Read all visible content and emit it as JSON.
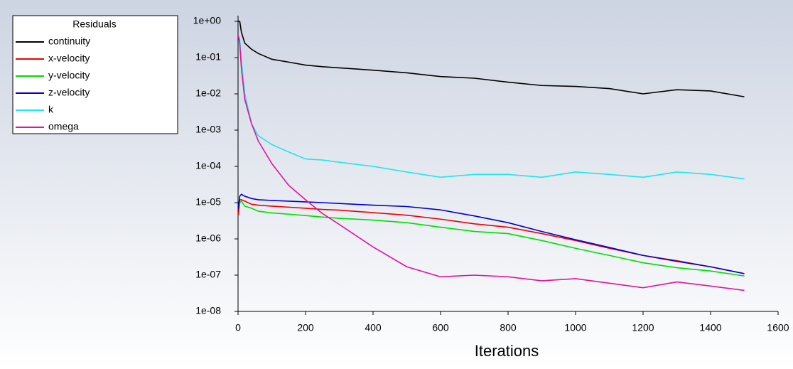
{
  "chart_data": {
    "type": "line",
    "legend_title": "Residuals",
    "xlabel": "Iterations",
    "log_y": true,
    "legend": "upper left",
    "xlim": [
      0,
      1600
    ],
    "xticks": [
      0,
      200,
      400,
      600,
      800,
      1000,
      1200,
      1400,
      1600
    ],
    "ylim": [
      1e-08,
      1
    ],
    "yticks": [
      {
        "value": 1,
        "label": "1e+00"
      },
      {
        "value": 0.1,
        "label": "1e-01"
      },
      {
        "value": 0.01,
        "label": "1e-02"
      },
      {
        "value": 0.001,
        "label": "1e-03"
      },
      {
        "value": 0.0001,
        "label": "1e-04"
      },
      {
        "value": 1e-05,
        "label": "1e-05"
      },
      {
        "value": 1e-06,
        "label": "1e-06"
      },
      {
        "value": 1e-07,
        "label": "1e-07"
      },
      {
        "value": 1e-08,
        "label": "1e-08"
      }
    ],
    "x": [
      1,
      5,
      10,
      20,
      40,
      60,
      100,
      150,
      200,
      250,
      300,
      400,
      500,
      600,
      700,
      800,
      900,
      1000,
      1100,
      1200,
      1300,
      1400,
      1500
    ],
    "series": [
      {
        "name": "continuity",
        "color": "#000000",
        "values": [
          1,
          1,
          0.5,
          0.25,
          0.17,
          0.13,
          0.09,
          0.075,
          0.062,
          0.056,
          0.052,
          0.045,
          0.038,
          0.03,
          0.027,
          0.021,
          0.017,
          0.016,
          0.014,
          0.01,
          0.013,
          0.012,
          0.0083
        ]
      },
      {
        "name": "x-velocity",
        "color": "#ee0000",
        "values": [
          4.5e-06,
          1.2e-05,
          1.2e-05,
          1.1e-05,
          9e-06,
          8.5e-06,
          8e-06,
          7.5e-06,
          7e-06,
          6.5e-06,
          6.2e-06,
          5.3e-06,
          4.5e-06,
          3.5e-06,
          2.6e-06,
          2.1e-06,
          1.4e-06,
          9e-07,
          5.5e-07,
          3.5e-07,
          2.5e-07,
          1.7e-07,
          1.1e-07
        ]
      },
      {
        "name": "y-velocity",
        "color": "#00dd00",
        "values": [
          8e-06,
          1e-05,
          1.1e-05,
          8e-06,
          7e-06,
          5.8e-06,
          5.2e-06,
          4.8e-06,
          4.4e-06,
          4e-06,
          3.7e-06,
          3.3e-06,
          2.8e-06,
          2.1e-06,
          1.6e-06,
          1.4e-06,
          9e-07,
          5.5e-07,
          3.5e-07,
          2.2e-07,
          1.6e-07,
          1.3e-07,
          9.5e-08
        ]
      },
      {
        "name": "z-velocity",
        "color": "#0000cc",
        "values": [
          7e-06,
          1.5e-05,
          1.7e-05,
          1.5e-05,
          1.3e-05,
          1.2e-05,
          1.15e-05,
          1.1e-05,
          1.05e-05,
          1e-05,
          9.5e-06,
          8.5e-06,
          7.8e-06,
          6.3e-06,
          4.3e-06,
          2.8e-06,
          1.6e-06,
          9.5e-07,
          5.8e-07,
          3.5e-07,
          2.4e-07,
          1.7e-07,
          1.1e-07
        ]
      },
      {
        "name": "k",
        "color": "#22e6e6",
        "values": [
          0.4,
          0.3,
          0.08,
          0.01,
          0.0015,
          0.0007,
          0.0004,
          0.00025,
          0.00016,
          0.00015,
          0.00013,
          0.0001,
          7e-05,
          5e-05,
          6e-05,
          6e-05,
          5e-05,
          7e-05,
          6e-05,
          5e-05,
          7e-05,
          6e-05,
          4.5e-05
        ]
      },
      {
        "name": "omega",
        "color": "#e0149c",
        "values": [
          0.4,
          0.25,
          0.05,
          0.007,
          0.0015,
          0.0005,
          0.00012,
          3e-05,
          1.2e-05,
          5e-06,
          2.5e-06,
          6e-07,
          1.7e-07,
          9e-08,
          1e-07,
          9e-08,
          7e-08,
          8e-08,
          6e-08,
          4.5e-08,
          6.5e-08,
          5e-08,
          3.8e-08
        ]
      }
    ]
  }
}
